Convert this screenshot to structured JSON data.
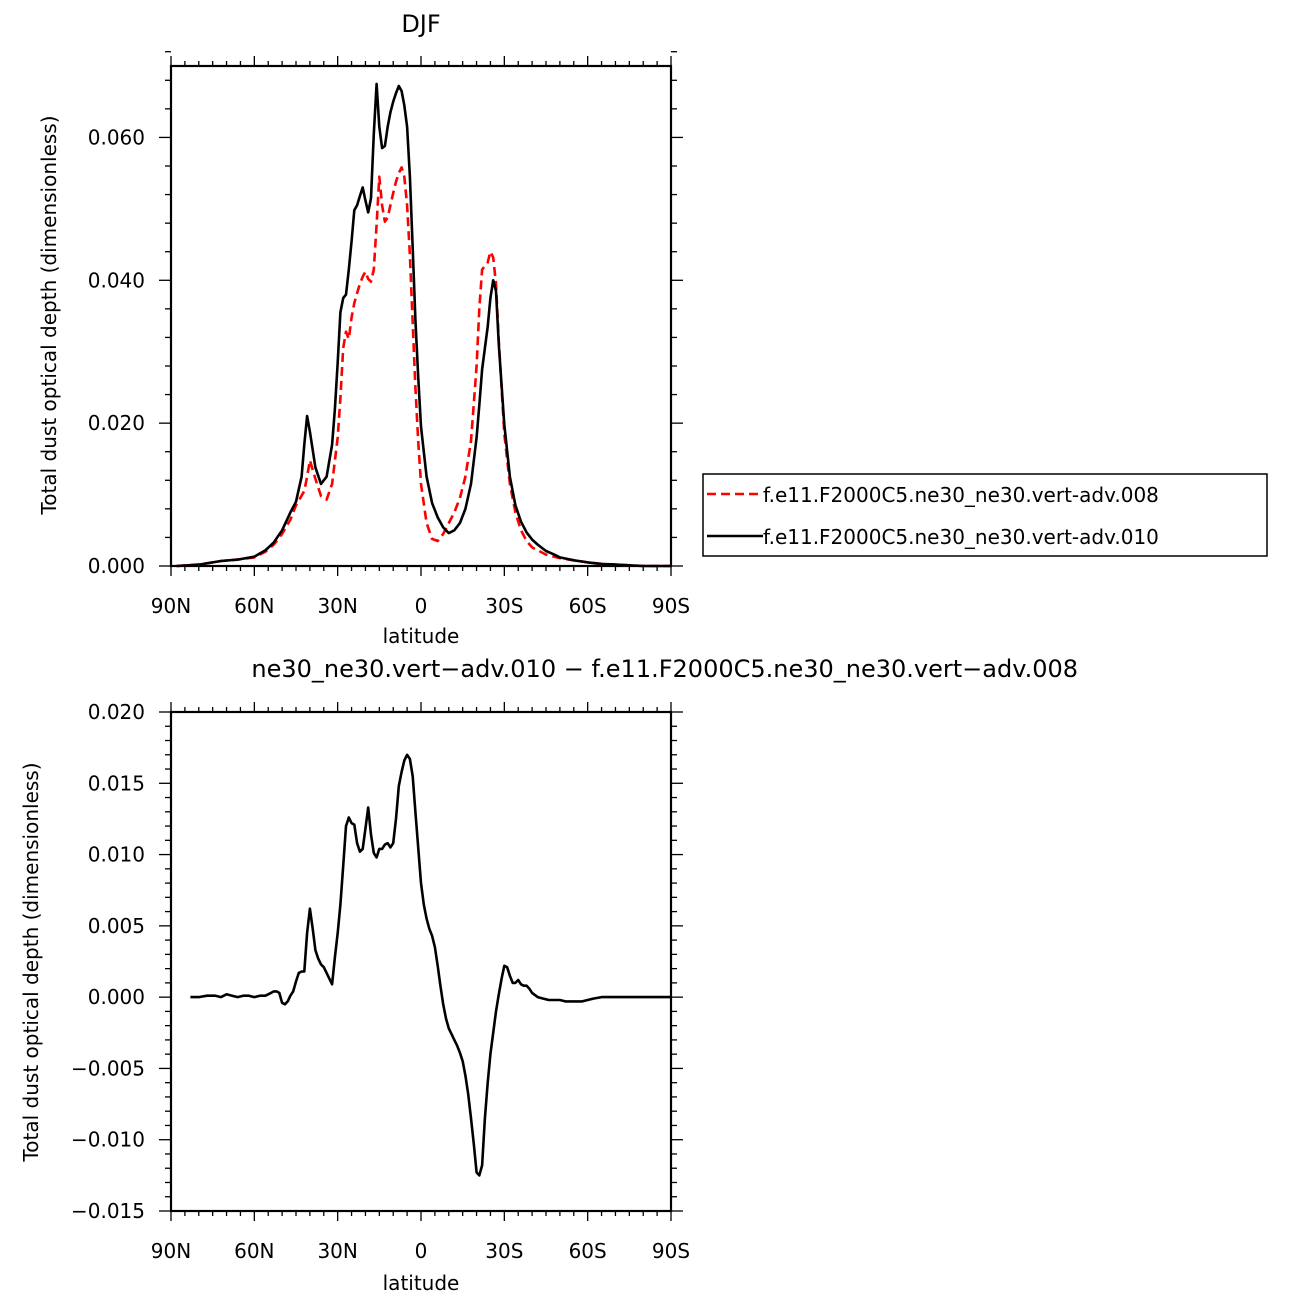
{
  "chart_data": [
    {
      "type": "line",
      "title": "DJF",
      "xlabel": "latitude",
      "ylabel": "Total dust optical depth (dimensionless)",
      "xlim": [
        90,
        -90
      ],
      "ylim": [
        0,
        0.07
      ],
      "x_ticks": [
        90,
        60,
        30,
        0,
        -30,
        -60,
        -90
      ],
      "x_tick_labels": [
        "90N",
        "60N",
        "30N",
        "0",
        "30S",
        "60S",
        "90S"
      ],
      "y_ticks": [
        0,
        0.02,
        0.04,
        0.06
      ],
      "y_tick_labels": [
        "0.000",
        "0.020",
        "0.040",
        "0.060"
      ],
      "legend_position": "right",
      "series": [
        {
          "name": "f.e11.F2000C5.ne30_ne30.vert-adv.008",
          "color": "#ff0000",
          "dash": "dashed",
          "x": [
            88,
            80,
            72,
            66,
            60,
            56,
            53,
            50,
            47,
            45,
            42,
            41,
            40,
            38,
            36,
            34,
            32,
            30,
            29,
            28,
            27,
            26,
            25,
            24,
            23,
            22,
            21,
            20,
            19,
            18,
            17,
            16,
            15,
            14,
            13,
            12,
            11,
            10,
            9,
            8,
            7,
            6,
            5,
            4,
            3,
            2,
            1,
            0,
            -2,
            -4,
            -6,
            -8,
            -10,
            -12,
            -14,
            -16,
            -18,
            -20,
            -21,
            -22,
            -23,
            -24,
            -25,
            -26,
            -27,
            -28,
            -30,
            -32,
            -34,
            -36,
            -38,
            -40,
            -42,
            -45,
            -48,
            -50,
            -55,
            -60,
            -65,
            -70,
            -75,
            -80,
            -90
          ],
          "y": [
            0.0,
            0.0002,
            0.0007,
            0.0009,
            0.0012,
            0.002,
            0.003,
            0.0045,
            0.0065,
            0.0085,
            0.0105,
            0.0125,
            0.0148,
            0.0122,
            0.0098,
            0.0093,
            0.0115,
            0.018,
            0.0235,
            0.0305,
            0.0328,
            0.0318,
            0.0348,
            0.0368,
            0.0382,
            0.0395,
            0.0405,
            0.0412,
            0.0402,
            0.0398,
            0.0415,
            0.0478,
            0.0545,
            0.0505,
            0.0482,
            0.0488,
            0.0505,
            0.0522,
            0.0538,
            0.055,
            0.0558,
            0.0545,
            0.0505,
            0.0435,
            0.034,
            0.025,
            0.0175,
            0.0115,
            0.006,
            0.0038,
            0.0035,
            0.0045,
            0.006,
            0.0075,
            0.0095,
            0.0125,
            0.0175,
            0.028,
            0.036,
            0.0415,
            0.042,
            0.0425,
            0.044,
            0.0432,
            0.0395,
            0.0315,
            0.0185,
            0.0115,
            0.0075,
            0.005,
            0.0035,
            0.0026,
            0.0022,
            0.0016,
            0.0013,
            0.0011,
            0.0008,
            0.0005,
            0.0003,
            0.0002,
            0.0001,
            0.0,
            0.0
          ]
        },
        {
          "name": "f.e11.F2000C5.ne30_ne30.vert-adv.010",
          "color": "#000000",
          "dash": "solid",
          "x": [
            88,
            80,
            72,
            66,
            60,
            56,
            53,
            50,
            47,
            45,
            43,
            42,
            41,
            40,
            38,
            36,
            34,
            32,
            31,
            30,
            29,
            28,
            27,
            26,
            25,
            24,
            23,
            22,
            21,
            20,
            19,
            18,
            17,
            16,
            15,
            14,
            13,
            12,
            11,
            10,
            9,
            8,
            7,
            6,
            5,
            4,
            3,
            2,
            1,
            0,
            -2,
            -4,
            -6,
            -8,
            -10,
            -12,
            -14,
            -16,
            -18,
            -20,
            -21,
            -22,
            -23,
            -24,
            -25,
            -26,
            -27,
            -28,
            -30,
            -32,
            -34,
            -36,
            -38,
            -40,
            -42,
            -45,
            -48,
            -50,
            -55,
            -60,
            -65,
            -70,
            -75,
            -80,
            -90
          ],
          "y": [
            0.0,
            0.0002,
            0.0007,
            0.0009,
            0.0013,
            0.0022,
            0.0033,
            0.005,
            0.0075,
            0.009,
            0.0125,
            0.017,
            0.021,
            0.0188,
            0.0138,
            0.0115,
            0.0125,
            0.017,
            0.022,
            0.0285,
            0.0355,
            0.0375,
            0.038,
            0.0415,
            0.0455,
            0.0498,
            0.0505,
            0.0518,
            0.053,
            0.0512,
            0.0495,
            0.0515,
            0.0605,
            0.0675,
            0.0615,
            0.0585,
            0.0588,
            0.0615,
            0.0635,
            0.065,
            0.0662,
            0.0672,
            0.0665,
            0.0645,
            0.0615,
            0.0545,
            0.0445,
            0.0345,
            0.0265,
            0.0195,
            0.0125,
            0.0088,
            0.0068,
            0.0054,
            0.0046,
            0.005,
            0.006,
            0.008,
            0.0115,
            0.018,
            0.0225,
            0.0275,
            0.0305,
            0.0335,
            0.0375,
            0.04,
            0.0385,
            0.031,
            0.0198,
            0.0125,
            0.0085,
            0.0062,
            0.0047,
            0.0037,
            0.003,
            0.0021,
            0.0016,
            0.0012,
            0.0008,
            0.0005,
            0.0003,
            0.0002,
            0.0001,
            0.0,
            0.0
          ]
        }
      ]
    },
    {
      "type": "line",
      "title": "f.e11.F2000C5.ne30_ne30.vert-adv.010 - f.e11.F2000C5.ne30_ne30.vert-adv.008",
      "visible_title": "ne30_ne30.vert−adv.010 − f.e11.F2000C5.ne30_ne30.vert−adv.008",
      "xlabel": "latitude",
      "ylabel": "Total dust optical depth (dimensionless)",
      "xlim": [
        90,
        -90
      ],
      "ylim": [
        -0.015,
        0.02
      ],
      "x_ticks": [
        90,
        60,
        30,
        0,
        -30,
        -60,
        -90
      ],
      "x_tick_labels": [
        "90N",
        "60N",
        "30N",
        "0",
        "30S",
        "60S",
        "90S"
      ],
      "y_ticks": [
        -0.015,
        -0.01,
        -0.005,
        0,
        0.005,
        0.01,
        0.015,
        0.02
      ],
      "y_tick_labels": [
        "−0.015",
        "−0.010",
        "−0.005",
        "0.000",
        "0.005",
        "0.010",
        "0.015",
        "0.020"
      ],
      "series": [
        {
          "color": "#000000",
          "dash": "solid",
          "x": [
            83,
            80,
            77,
            74,
            72,
            70,
            68,
            66,
            64,
            62,
            60,
            58,
            56,
            54,
            53,
            52,
            51,
            50,
            49,
            48,
            47,
            46,
            45,
            44,
            43,
            42,
            41,
            40,
            39,
            38,
            37,
            36,
            35,
            34,
            33,
            32,
            31,
            30,
            29,
            28,
            27,
            26,
            25,
            24,
            23,
            22,
            21,
            20,
            19,
            18,
            17,
            16,
            15,
            14,
            13,
            12,
            11,
            10,
            9,
            8,
            7,
            6,
            5,
            4,
            3,
            2,
            1,
            0,
            -1,
            -2,
            -3,
            -4,
            -5,
            -6,
            -7,
            -8,
            -9,
            -10,
            -11,
            -12,
            -13,
            -14,
            -15,
            -16,
            -17,
            -18,
            -19,
            -20,
            -21,
            -22,
            -23,
            -24,
            -25,
            -26,
            -27,
            -28,
            -29,
            -30,
            -31,
            -32,
            -33,
            -34,
            -35,
            -36,
            -37,
            -38,
            -39,
            -40,
            -42,
            -44,
            -46,
            -48,
            -50,
            -52,
            -55,
            -58,
            -60,
            -62,
            -65,
            -70,
            -75,
            -80,
            -90
          ],
          "y": [
            0.0,
            0.0,
            0.0001,
            0.0001,
            0.0,
            0.0002,
            0.0001,
            0.0,
            0.0001,
            0.0001,
            0.0,
            0.0001,
            0.0001,
            0.0003,
            0.0004,
            0.0004,
            0.0003,
            -0.0004,
            -0.0005,
            -0.0003,
            0.0001,
            0.0004,
            0.0011,
            0.0017,
            0.0018,
            0.0018,
            0.0045,
            0.0062,
            0.0048,
            0.0033,
            0.0027,
            0.0023,
            0.0021,
            0.0017,
            0.0013,
            0.0009,
            0.0028,
            0.0045,
            0.0065,
            0.0092,
            0.012,
            0.0126,
            0.0122,
            0.0121,
            0.0108,
            0.0102,
            0.0104,
            0.0118,
            0.0133,
            0.0114,
            0.0101,
            0.0098,
            0.0104,
            0.0104,
            0.0107,
            0.0108,
            0.0105,
            0.0108,
            0.0125,
            0.0148,
            0.0158,
            0.0166,
            0.017,
            0.0167,
            0.0155,
            0.013,
            0.0105,
            0.008,
            0.0065,
            0.0055,
            0.0048,
            0.0043,
            0.0035,
            0.0022,
            0.0008,
            -0.0005,
            -0.0015,
            -0.0022,
            -0.0026,
            -0.003,
            -0.0034,
            -0.0039,
            -0.0045,
            -0.0055,
            -0.0068,
            -0.0085,
            -0.0103,
            -0.0123,
            -0.0125,
            -0.0118,
            -0.0085,
            -0.006,
            -0.004,
            -0.0025,
            -0.001,
            0.0002,
            0.0013,
            0.0022,
            0.0021,
            0.0015,
            0.001,
            0.001,
            0.0012,
            0.0009,
            0.0008,
            0.0008,
            0.0006,
            0.0003,
            0.0,
            -0.0001,
            -0.0002,
            -0.0002,
            -0.0002,
            -0.0003,
            -0.0003,
            -0.0003,
            -0.0002,
            -0.0001,
            0.0,
            0.0,
            0.0,
            0.0,
            0.0
          ]
        }
      ]
    }
  ]
}
